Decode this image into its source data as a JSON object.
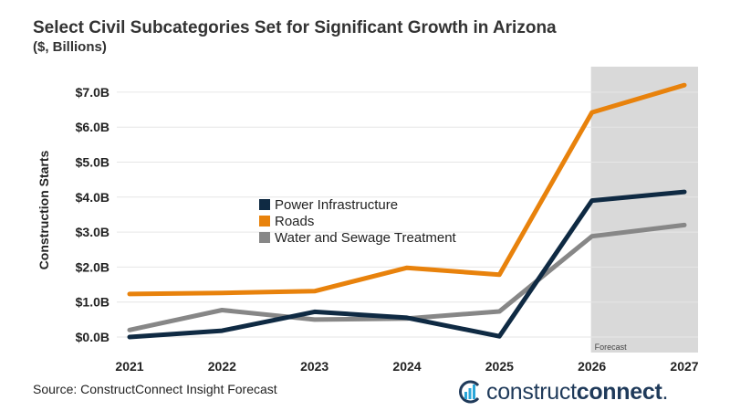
{
  "chart_data": {
    "type": "line",
    "title": "Select Civil Subcategories Set for Significant Growth in Arizona",
    "subtitle": "($, Billions)",
    "ylabel": "Construction Starts",
    "x": [
      "2021",
      "2022",
      "2023",
      "2024",
      "2025",
      "2026",
      "2027"
    ],
    "ylim": [
      0,
      7.2
    ],
    "yticks": [
      0,
      1,
      2,
      3,
      4,
      5,
      6,
      7
    ],
    "ytick_labels": [
      "$0.0B",
      "$1.0B",
      "$2.0B",
      "$3.0B",
      "$4.0B",
      "$5.0B",
      "$6.0B",
      "$7.0B"
    ],
    "grid": true,
    "legend_position": "center",
    "forecast_label": "Forecast",
    "forecast_start": "2026",
    "series": [
      {
        "name": "Power Infrastructure",
        "color": "#0f2a43",
        "values": [
          0.0,
          0.18,
          0.72,
          0.55,
          0.02,
          3.9,
          4.15
        ]
      },
      {
        "name": "Roads",
        "color": "#e8820c",
        "values": [
          1.23,
          1.26,
          1.31,
          1.98,
          1.78,
          6.42,
          7.2
        ]
      },
      {
        "name": "Water and Sewage Treatment",
        "color": "#878787",
        "values": [
          0.2,
          0.77,
          0.5,
          0.53,
          0.73,
          2.88,
          3.2
        ]
      }
    ]
  },
  "footer": {
    "source": "Source: ConstructConnect Insight Forecast",
    "logo_text_light": "construct",
    "logo_text_bold": "connect",
    "logo_dot": "."
  }
}
